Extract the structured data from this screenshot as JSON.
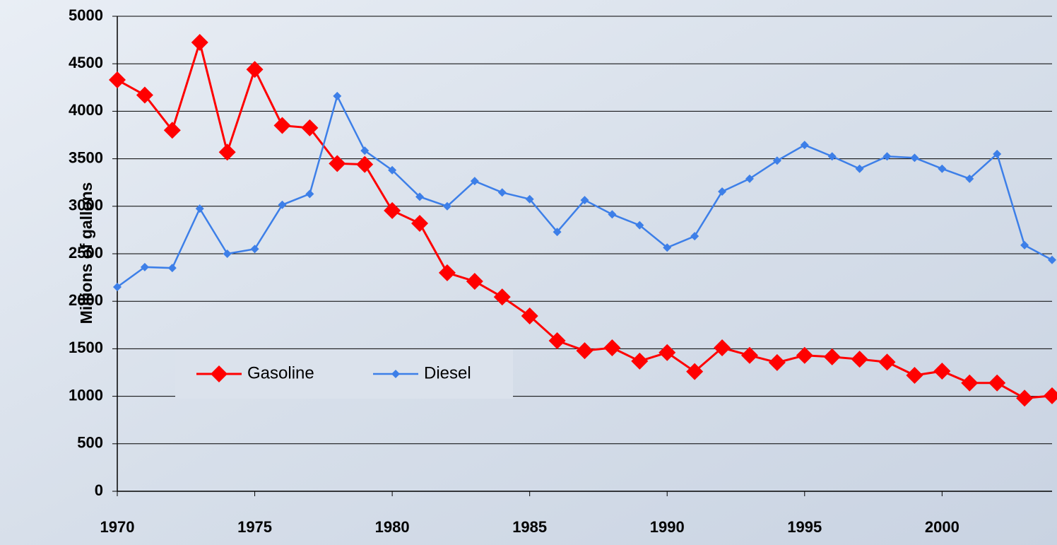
{
  "chart_data": {
    "type": "line",
    "y_label": "Millions of gallons",
    "x": [
      1970,
      1971,
      1972,
      1973,
      1974,
      1975,
      1976,
      1977,
      1978,
      1979,
      1980,
      1981,
      1982,
      1983,
      1984,
      1985,
      1986,
      1987,
      1988,
      1989,
      1990,
      1991,
      1992,
      1993,
      1994,
      1995,
      1996,
      1997,
      1998,
      1999,
      2000,
      2001,
      2002,
      2003,
      2004
    ],
    "series": [
      {
        "name": "Gasoline",
        "color": "#ff0000",
        "marker": "large-diamond",
        "values": [
          4330,
          4170,
          3800,
          4725,
          3570,
          4440,
          3850,
          3825,
          3450,
          3440,
          2955,
          2820,
          2300,
          2210,
          2045,
          1845,
          1585,
          1480,
          1510,
          1370,
          1460,
          1260,
          1510,
          1430,
          1355,
          1430,
          1415,
          1390,
          1360,
          1220,
          1265,
          1140,
          1140,
          980,
          1005
        ]
      },
      {
        "name": "Diesel",
        "color": "#3d7fe8",
        "marker": "small-diamond",
        "values": [
          2150,
          2360,
          2350,
          2975,
          2500,
          2550,
          3015,
          3130,
          4160,
          3585,
          3380,
          3100,
          3000,
          3265,
          3145,
          3075,
          2730,
          3065,
          2915,
          2800,
          2565,
          2685,
          3155,
          3290,
          3480,
          3645,
          3525,
          3395,
          3525,
          3510,
          3395,
          3290,
          3550,
          2590,
          2435
        ]
      }
    ],
    "xlim": [
      1970,
      2004
    ],
    "xticks": [
      1970,
      1975,
      1980,
      1985,
      1990,
      1995,
      2000
    ],
    "ylim": [
      0,
      5000
    ],
    "yticks": [
      0,
      500,
      1000,
      1500,
      2000,
      2500,
      3000,
      3500,
      4000,
      4500,
      5000
    ],
    "grid": true,
    "legend": "lower left"
  }
}
